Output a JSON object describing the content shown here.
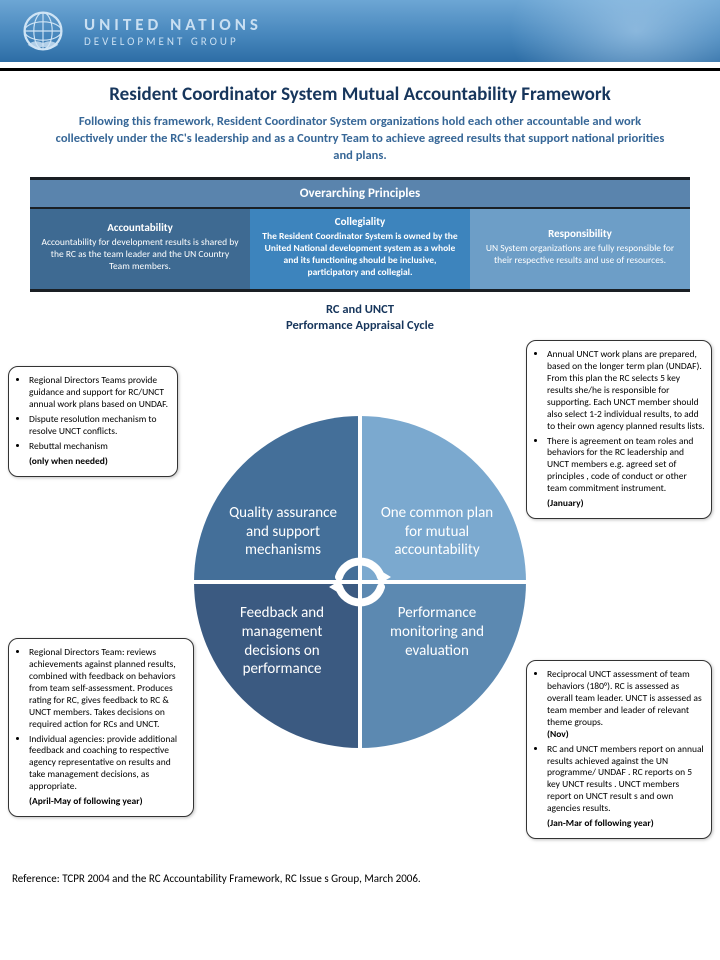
{
  "colors": {
    "header_gradient": [
      "#6da6d4",
      "#4585bb",
      "#2d6da5"
    ],
    "title": "#17365c",
    "intro": "#376797",
    "principles_bar": "#5a84ad",
    "principles_border": "#1a1f24",
    "col_accountability": "#3e6a92",
    "col_collegiality": "#3d84bd",
    "col_responsibility": "#6d9ec7",
    "quad_tl": "#446f99",
    "quad_tr": "#7ba9cf",
    "quad_bl": "#3b5a81",
    "quad_br": "#5c89b1",
    "callout_border": "#333333"
  },
  "header": {
    "org_line1": "UNITED NATIONS",
    "org_line2": "DEVELOPMENT GROUP"
  },
  "title": "Resident Coordinator System Mutual Accountability Framework",
  "intro": "Following this framework, Resident Coordinator System organizations hold each other accountable and work collectively under the RC's leadership and as a Country Team to achieve agreed results that support national priorities and plans.",
  "principles": {
    "header": "Overarching Principles",
    "cols": [
      {
        "title": "Accountability",
        "body": "Accountability for development results is shared by the RC as the team leader and the UN Country Team members."
      },
      {
        "title": "Collegiality",
        "body": "The Resident Coordinator System is owned by the United National development system as a whole and its functioning should be inclusive, participatory and collegial."
      },
      {
        "title": "Responsibility",
        "body": "UN System organizations are fully responsible for their respective results and use of resources."
      }
    ]
  },
  "subtitle": "RC and UNCT\nPerformance Appraisal Cycle",
  "quadrants": {
    "tl": "Quality assurance and support mechanisms",
    "tr": "One common plan for mutual accountability",
    "bl": "Feedback and management decisions on performance",
    "br": "Performance monitoring and evaluation"
  },
  "callouts": {
    "tl": {
      "items": [
        "Regional  Directors Teams  provide guidance and support for RC/UNCT annual work plans based on UNDAF.",
        "Dispute resolution mechanism to resolve UNCT conflicts.",
        "Rebuttal mechanism"
      ],
      "tag": "(only when needed)"
    },
    "tr": {
      "items": [
        "Annual UNCT work plans are prepared, based on the longer term plan (UNDAF). From this plan the RC selects 5 key results she/he is responsible for supporting.  Each UNCT member should also select 1-2 individual results, to add to their own agency planned results lists.",
        "There is agreement on team roles and behaviors for the RC leadership and UNCT members  e.g. agreed set of principles , code of conduct or other team commitment instrument."
      ],
      "tag": "(January)"
    },
    "bl": {
      "items": [
        "Regional  Directors Team: reviews achievements against planned results, combined with feedback on behaviors from team self-assessment. Produces rating for RC, gives feedback to RC & UNCT members. Takes decisions on required action for RCs and UNCT.",
        "Individual agencies:  provide additional feedback and coaching to  respective agency representative on results and take management decisions, as appropriate."
      ],
      "tag": "(April-May  of following year)"
    },
    "br": {
      "items": [
        "Reciprocal UNCT assessment of team behaviors (180°). RC is assessed as overall team leader. UNCT is assessed as team member and leader of relevant theme groups.",
        "__TAG1__",
        "RC and UNCT members report on annual results  achieved against the UN programme/ UNDAF . RC reports on 5 key UNCT results . UNCT members report on UNCT result s and own agencies results."
      ],
      "tag1": "(Nov)",
      "tag": "(Jan-Mar of following year)"
    }
  },
  "reference": "Reference: TCPR 2004 and the RC Accountability Framework, RC Issue s Group, March 2006."
}
